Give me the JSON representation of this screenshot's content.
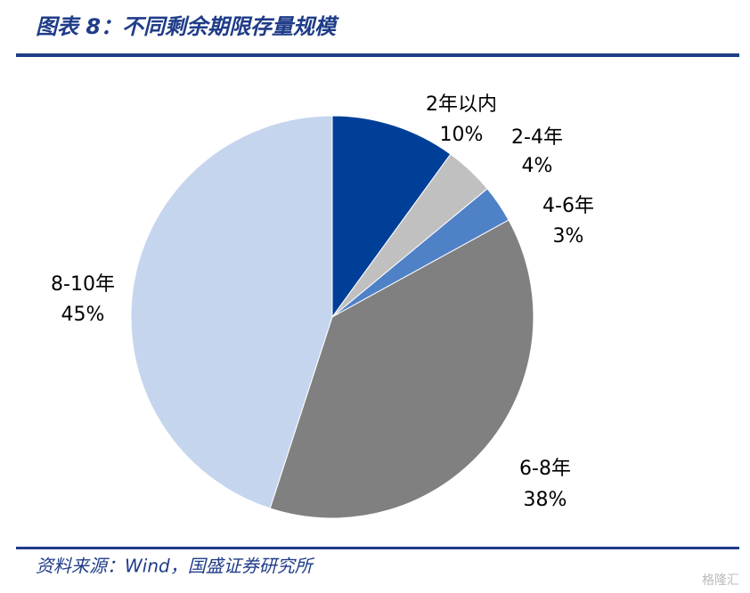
{
  "chart_data": {
    "type": "pie",
    "title": "图表 8：不同剩余期限存量规模",
    "categories": [
      "2年以内",
      "2-4年",
      "4-6年",
      "6-8年",
      "8-10年"
    ],
    "values": [
      10,
      4,
      3,
      38,
      45
    ],
    "value_labels": [
      "10%",
      "4%",
      "3%",
      "38%",
      "45%"
    ],
    "colors": [
      "#003f98",
      "#c0c0c0",
      "#4f81c7",
      "#808080",
      "#c5d5ee"
    ]
  },
  "source": "资料来源：Wind，国盛证券研究所",
  "watermark": "格隆汇"
}
